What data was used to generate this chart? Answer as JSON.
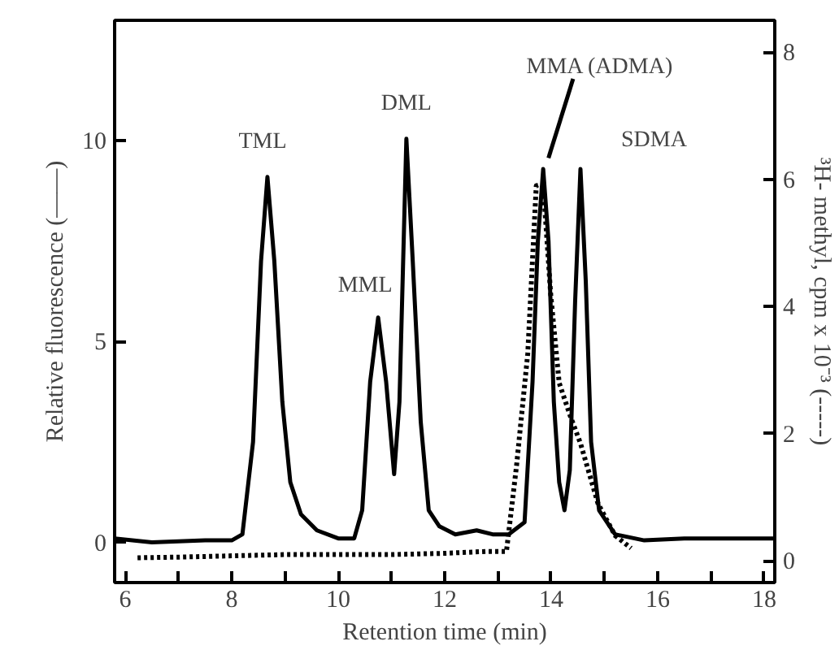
{
  "chart_data": {
    "type": "line",
    "xlabel": "Retention time (min)",
    "ylabel": "Relative fluorescence (——)",
    "y2label": "³H- methyl, cpm x 10⁻³ (-----)",
    "xlim": [
      5.8,
      18.2
    ],
    "ylim": [
      -1,
      13
    ],
    "y2lim": [
      -0.34,
      8.5
    ],
    "xticks": [
      6,
      {
        "value": 7,
        "label": null
      },
      8,
      {
        "value": 9,
        "label": null
      },
      10,
      {
        "value": 11,
        "label": null
      },
      12,
      {
        "value": 13,
        "label": null
      },
      14,
      {
        "value": 15,
        "label": null
      },
      16,
      {
        "value": 17,
        "label": null
      },
      18
    ],
    "yticks": [
      0,
      5,
      10
    ],
    "y2ticks": [
      0,
      2,
      4,
      6,
      8
    ],
    "marker": "none",
    "series": [
      {
        "color": "#000000",
        "line_style": "solid",
        "x": [
          5.8,
          6.5,
          7.5,
          8.0,
          8.2,
          8.4,
          8.55,
          8.67,
          8.8,
          8.95,
          9.1,
          9.3,
          9.6,
          10.0,
          10.3,
          10.45,
          10.6,
          10.75,
          10.9,
          11.05,
          11.15,
          11.28,
          11.4,
          11.55,
          11.7,
          11.9,
          12.2,
          12.6,
          12.9,
          13.2,
          13.5,
          13.65,
          13.75,
          13.85,
          13.95,
          14.05,
          14.15,
          14.25,
          14.35,
          14.45,
          14.55,
          14.65,
          14.75,
          14.9,
          15.2,
          15.75,
          16.5,
          18.2
        ],
        "values": [
          0.1,
          0.0,
          0.05,
          0.05,
          0.2,
          2.5,
          7.0,
          9.1,
          7.0,
          3.5,
          1.5,
          0.7,
          0.3,
          0.1,
          0.1,
          0.8,
          4.0,
          5.6,
          4.0,
          1.7,
          3.5,
          10.05,
          7.0,
          3.0,
          0.8,
          0.4,
          0.2,
          0.3,
          0.2,
          0.2,
          0.5,
          4.0,
          7.5,
          9.3,
          7.5,
          3.5,
          1.5,
          0.8,
          1.8,
          6.0,
          9.3,
          6.5,
          2.5,
          0.8,
          0.2,
          0.05,
          0.1,
          0.1
        ]
      },
      {
        "color": "#000000",
        "line_style": "dotted",
        "axis": "y2",
        "x": [
          6.23,
          7.0,
          8.0,
          9.0,
          10.0,
          11.0,
          12.0,
          12.8,
          13.16,
          13.35,
          13.56,
          13.72,
          13.85,
          13.99,
          14.15,
          14.35,
          14.55,
          14.88,
          15.2,
          15.5
        ],
        "values": [
          0.05,
          0.06,
          0.08,
          0.1,
          0.1,
          0.1,
          0.12,
          0.15,
          0.15,
          1.5,
          3.26,
          5.9,
          5.92,
          4.2,
          2.8,
          2.3,
          1.85,
          0.9,
          0.4,
          0.2
        ]
      }
    ],
    "annotations": [
      {
        "text": "TML",
        "x": 8.67,
        "y": 9.1
      },
      {
        "text": "MML",
        "x": 10.75,
        "y": 5.6
      },
      {
        "text": "DML",
        "x": 11.28,
        "y": 10.05
      },
      {
        "text": "MMA (ADMA)",
        "x": 13.85,
        "y": 9.3
      },
      {
        "text": "SDMA",
        "x": 14.55,
        "y": 9.3
      }
    ]
  }
}
